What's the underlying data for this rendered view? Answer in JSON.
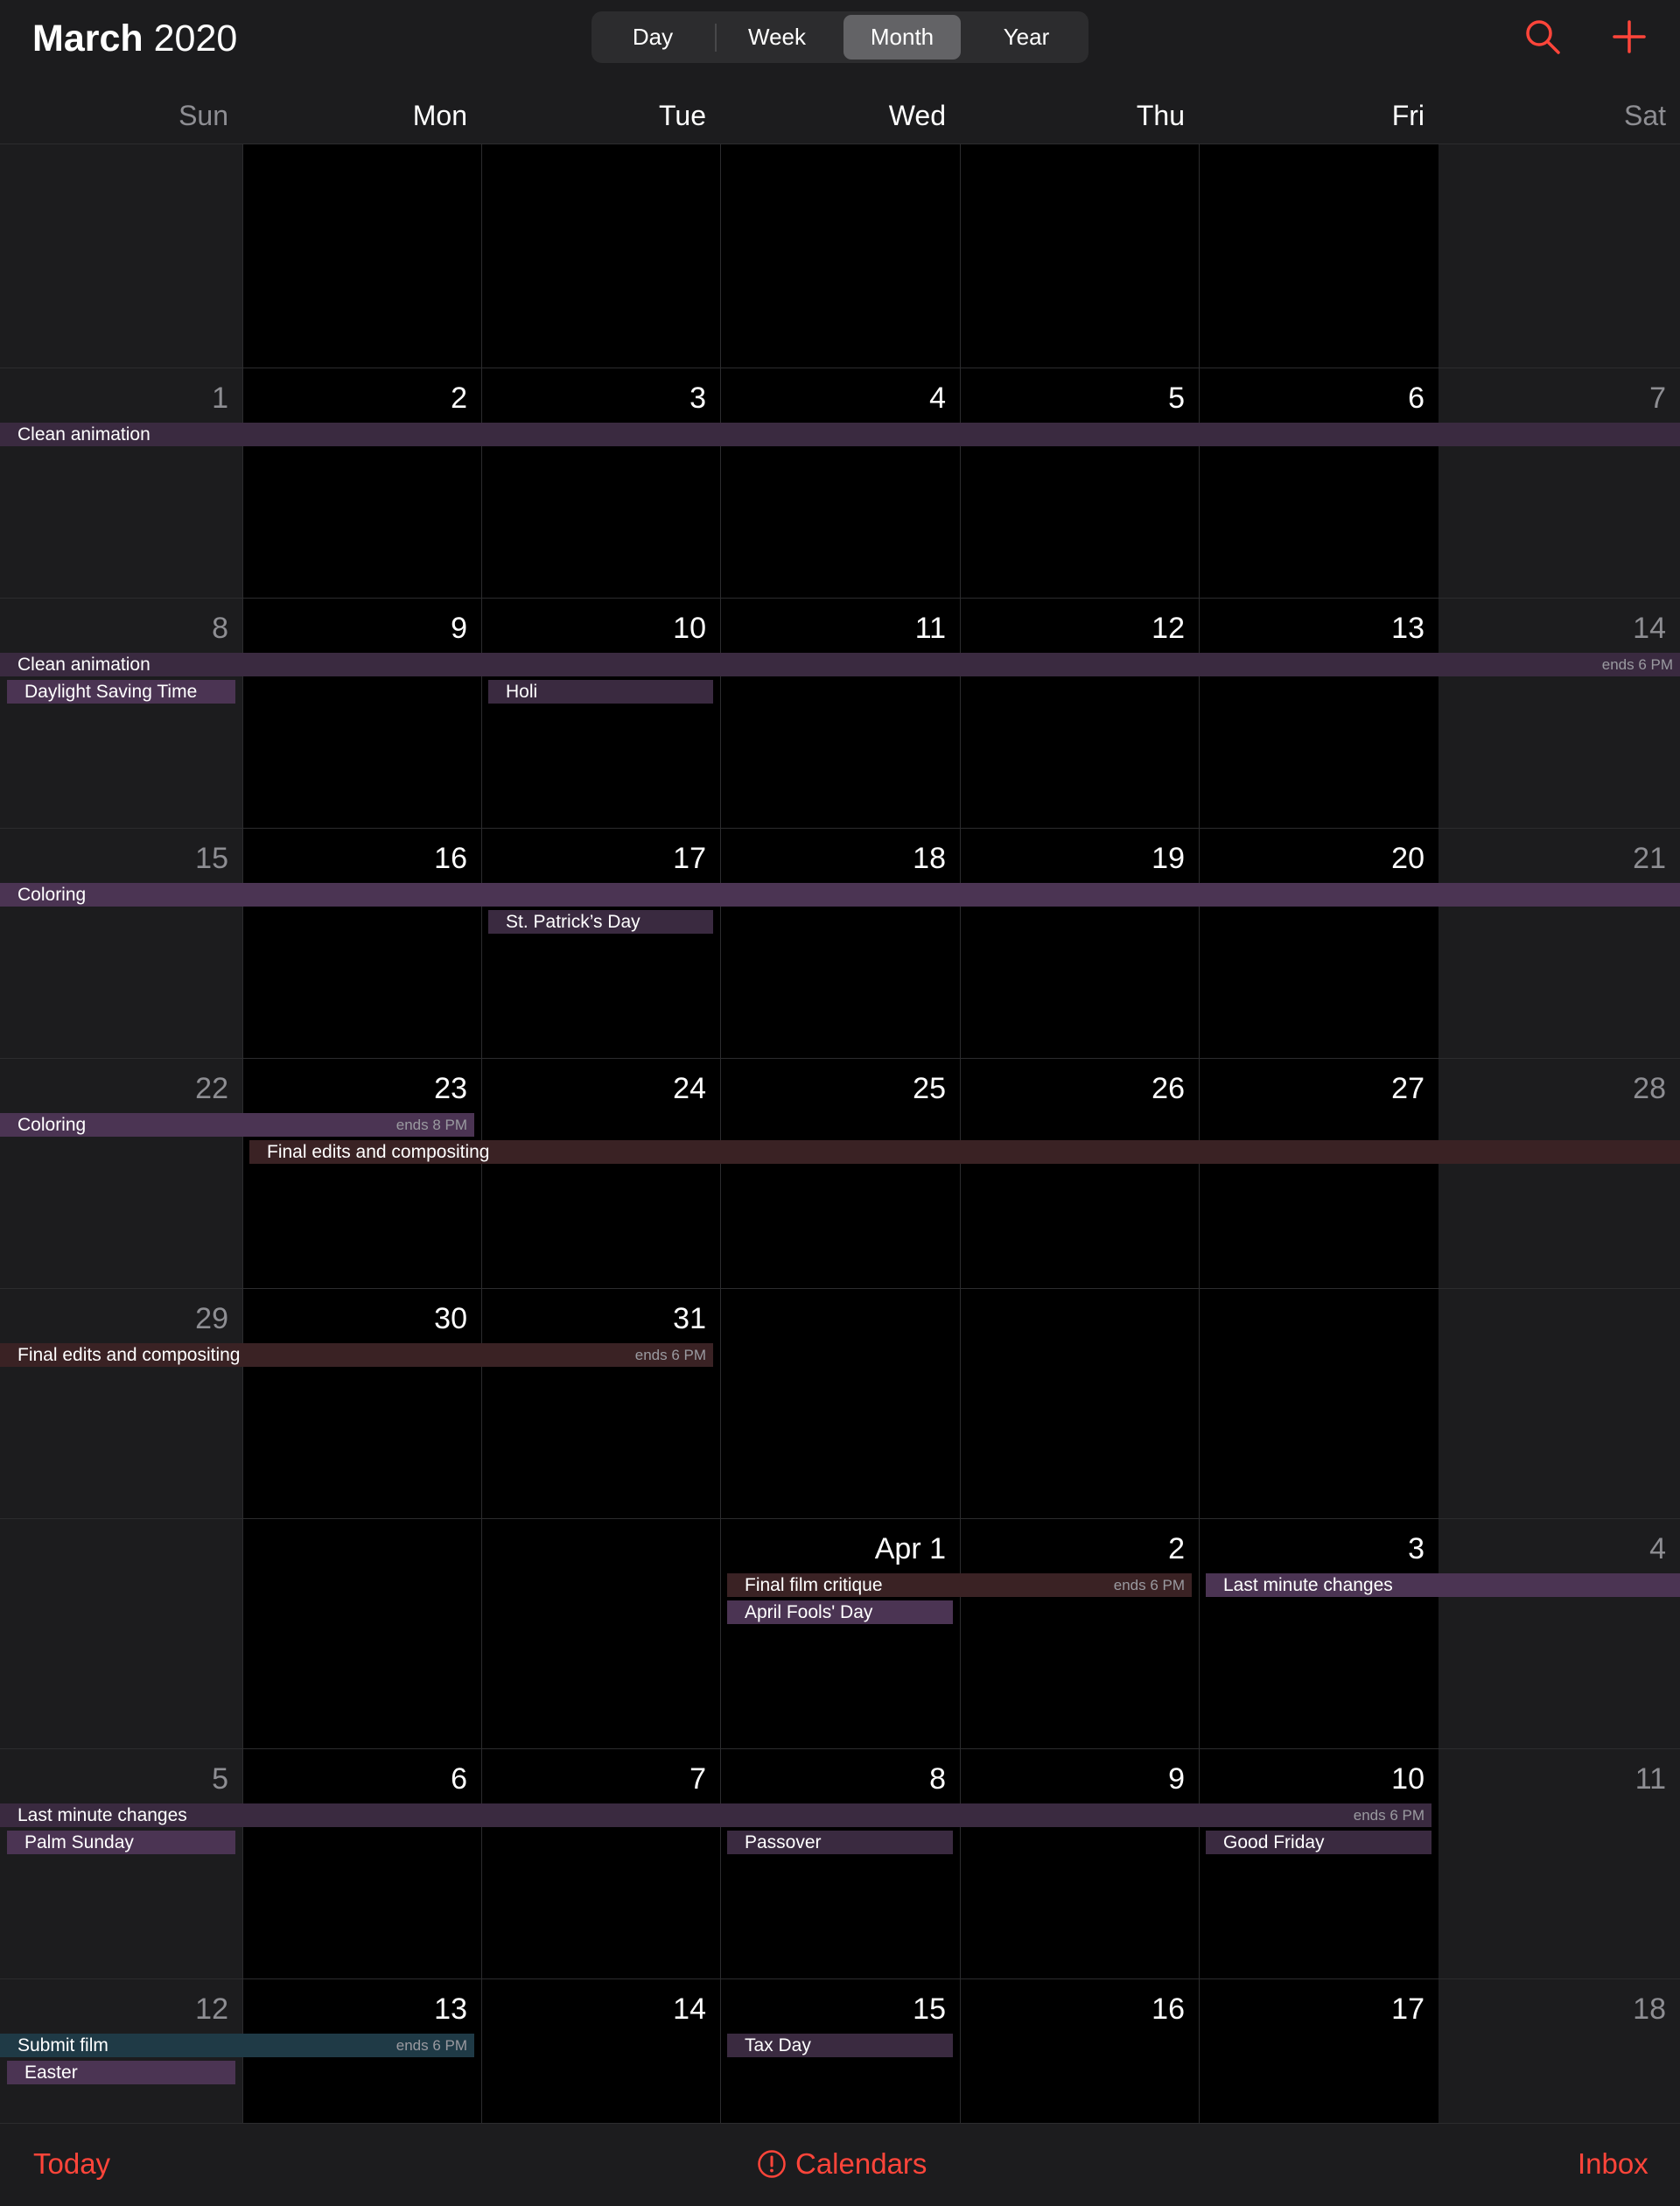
{
  "header": {
    "title_month": "March",
    "title_year": "2020",
    "views": [
      {
        "label": "Day",
        "selected": false
      },
      {
        "label": "Week",
        "selected": false
      },
      {
        "label": "Month",
        "selected": true
      },
      {
        "label": "Year",
        "selected": false
      }
    ],
    "icons": {
      "search": "search-icon",
      "add": "plus-icon"
    },
    "accent": "#ff453a"
  },
  "weekdays": [
    "Sun",
    "Mon",
    "Tue",
    "Wed",
    "Thu",
    "Fri",
    "Sat"
  ],
  "weeks": [
    [
      "",
      "",
      "",
      "",
      "",
      "",
      ""
    ],
    [
      "1",
      "2",
      "3",
      "4",
      "5",
      "6",
      "7"
    ],
    [
      "8",
      "9",
      "10",
      "11",
      "12",
      "13",
      "14"
    ],
    [
      "15",
      "16",
      "17",
      "18",
      "19",
      "20",
      "21"
    ],
    [
      "22",
      "23",
      "24",
      "25",
      "26",
      "27",
      "28"
    ],
    [
      "29",
      "30",
      "31",
      "",
      "",
      "",
      ""
    ],
    [
      "",
      "",
      "",
      "Apr 1",
      "2",
      "3",
      "4"
    ],
    [
      "5",
      "6",
      "7",
      "8",
      "9",
      "10",
      "11"
    ],
    [
      "12",
      "13",
      "14",
      "15",
      "16",
      "17",
      "18"
    ]
  ],
  "events": [
    {
      "title": "Clean animation",
      "week": 1,
      "start": 0,
      "end": 6,
      "lane": 0,
      "color": "purple",
      "ends": ""
    },
    {
      "title": "Clean animation",
      "week": 2,
      "start": 0,
      "end": 6,
      "lane": 0,
      "color": "purple",
      "ends": "ends 6 PM"
    },
    {
      "title": "Daylight Saving Time",
      "week": 2,
      "start": 0,
      "end": 0,
      "lane": 1,
      "color": "purple-l",
      "ends": ""
    },
    {
      "title": "Holi",
      "week": 2,
      "start": 2,
      "end": 2,
      "lane": 1,
      "color": "purple",
      "ends": ""
    },
    {
      "title": "Coloring",
      "week": 3,
      "start": 0,
      "end": 6,
      "lane": 0,
      "color": "purple-l",
      "ends": ""
    },
    {
      "title": "St. Patrick’s Day",
      "week": 3,
      "start": 2,
      "end": 2,
      "lane": 1,
      "color": "purple",
      "ends": ""
    },
    {
      "title": "Coloring",
      "week": 4,
      "start": 0,
      "end": 1,
      "lane": 0,
      "color": "purple-l",
      "ends": "ends 8 PM"
    },
    {
      "title": "Final edits and compositing",
      "week": 4,
      "start": 1,
      "end": 6,
      "lane": 1,
      "color": "red",
      "ends": ""
    },
    {
      "title": "Final edits and compositing",
      "week": 5,
      "start": 0,
      "end": 2,
      "lane": 0,
      "color": "red",
      "ends": "ends 6 PM"
    },
    {
      "title": "Final film critique",
      "week": 6,
      "start": 3,
      "end": 4,
      "lane": 0,
      "color": "red",
      "ends": "ends 6 PM"
    },
    {
      "title": "Last minute changes",
      "week": 6,
      "start": 5,
      "end": 6,
      "lane": 0,
      "color": "purple-l",
      "ends": ""
    },
    {
      "title": "April Fools' Day",
      "week": 6,
      "start": 3,
      "end": 3,
      "lane": 1,
      "color": "purple-l",
      "ends": ""
    },
    {
      "title": "Last minute changes",
      "week": 7,
      "start": 0,
      "end": 5,
      "lane": 0,
      "color": "purple",
      "ends": "ends 6 PM"
    },
    {
      "title": "Palm Sunday",
      "week": 7,
      "start": 0,
      "end": 0,
      "lane": 1,
      "color": "purple-l",
      "ends": ""
    },
    {
      "title": "Passover",
      "week": 7,
      "start": 3,
      "end": 3,
      "lane": 1,
      "color": "purple",
      "ends": ""
    },
    {
      "title": "Good Friday",
      "week": 7,
      "start": 5,
      "end": 5,
      "lane": 1,
      "color": "purple",
      "ends": ""
    },
    {
      "title": "Submit film",
      "week": 8,
      "start": 0,
      "end": 1,
      "lane": 0,
      "color": "teal",
      "ends": "ends 6 PM"
    },
    {
      "title": "Easter",
      "week": 8,
      "start": 0,
      "end": 0,
      "lane": 1,
      "color": "purple-l",
      "ends": ""
    },
    {
      "title": "Tax Day",
      "week": 8,
      "start": 3,
      "end": 3,
      "lane": 0,
      "color": "purple",
      "ends": ""
    }
  ],
  "bottom": {
    "today_label": "Today",
    "calendars_label": "Calendars",
    "calendars_icon": "alert-circle-icon",
    "inbox_label": "Inbox"
  }
}
